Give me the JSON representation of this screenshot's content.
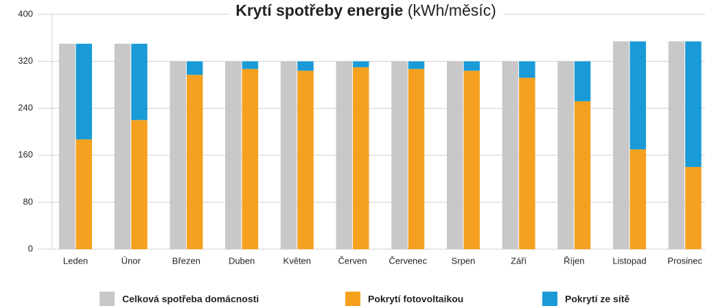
{
  "chart_data": {
    "type": "bar",
    "title": "Krytí spotřeby energie",
    "title_unit": "(kWh/měsíc)",
    "categories": [
      "Leden",
      "Únor",
      "Březen",
      "Duben",
      "Květen",
      "Červen",
      "Červenec",
      "Srpen",
      "Září",
      "Říjen",
      "Listopad",
      "Prosinec"
    ],
    "series": [
      {
        "name": "Celková spotřeba domácnosti",
        "color": "#c8c8c8",
        "values": [
          350,
          350,
          320,
          320,
          320,
          320,
          320,
          320,
          320,
          320,
          354,
          354
        ]
      },
      {
        "name": "Pokrytí fotovoltaikou",
        "color": "#f5a01f",
        "values": [
          187,
          220,
          297,
          307,
          304,
          310,
          307,
          304,
          292,
          252,
          170,
          140
        ]
      },
      {
        "name": "Pokrytí ze sítě",
        "color": "#1a9bd7",
        "values": [
          163,
          130,
          23,
          13,
          16,
          10,
          13,
          16,
          28,
          68,
          184,
          214
        ]
      }
    ],
    "ylim": [
      0,
      400
    ],
    "yticks": [
      0,
      80,
      160,
      240,
      320,
      400
    ],
    "grid": true,
    "legend": "bottom"
  }
}
